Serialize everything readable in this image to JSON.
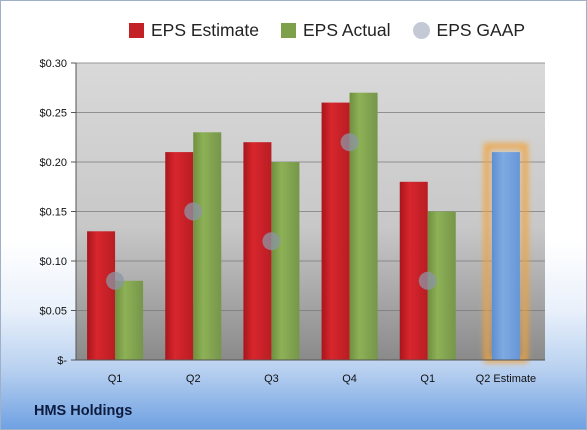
{
  "chart_data": {
    "type": "bar",
    "categories": [
      "Q1",
      "Q2",
      "Q3",
      "Q4",
      "Q1",
      "Q2 Estimate"
    ],
    "series": [
      {
        "name": "EPS Estimate",
        "color": "#c42127",
        "values": [
          0.13,
          0.21,
          0.22,
          0.26,
          0.18,
          null
        ]
      },
      {
        "name": "EPS Actual",
        "color": "#7fa04a",
        "values": [
          0.08,
          0.23,
          0.2,
          0.27,
          0.15,
          0.21
        ]
      },
      {
        "name": "EPS GAAP",
        "color": "#9aa5b5",
        "values": [
          0.08,
          0.15,
          0.12,
          0.22,
          0.08,
          null
        ]
      }
    ],
    "estimate_bar": {
      "category": "Q2 Estimate",
      "value": 0.21,
      "color": "#6f9edb",
      "glow_color": "#f3a33a"
    },
    "ylim": [
      0,
      0.3
    ],
    "yticks": [
      0,
      0.05,
      0.1,
      0.15,
      0.2,
      0.25,
      0.3
    ],
    "ytick_labels": [
      "$-",
      "$0.05",
      "$0.10",
      "$0.15",
      "$0.20",
      "$0.25",
      "$0.30"
    ],
    "grid": true,
    "legend_position": "top"
  },
  "footer": {
    "company": "HMS Holdings"
  }
}
